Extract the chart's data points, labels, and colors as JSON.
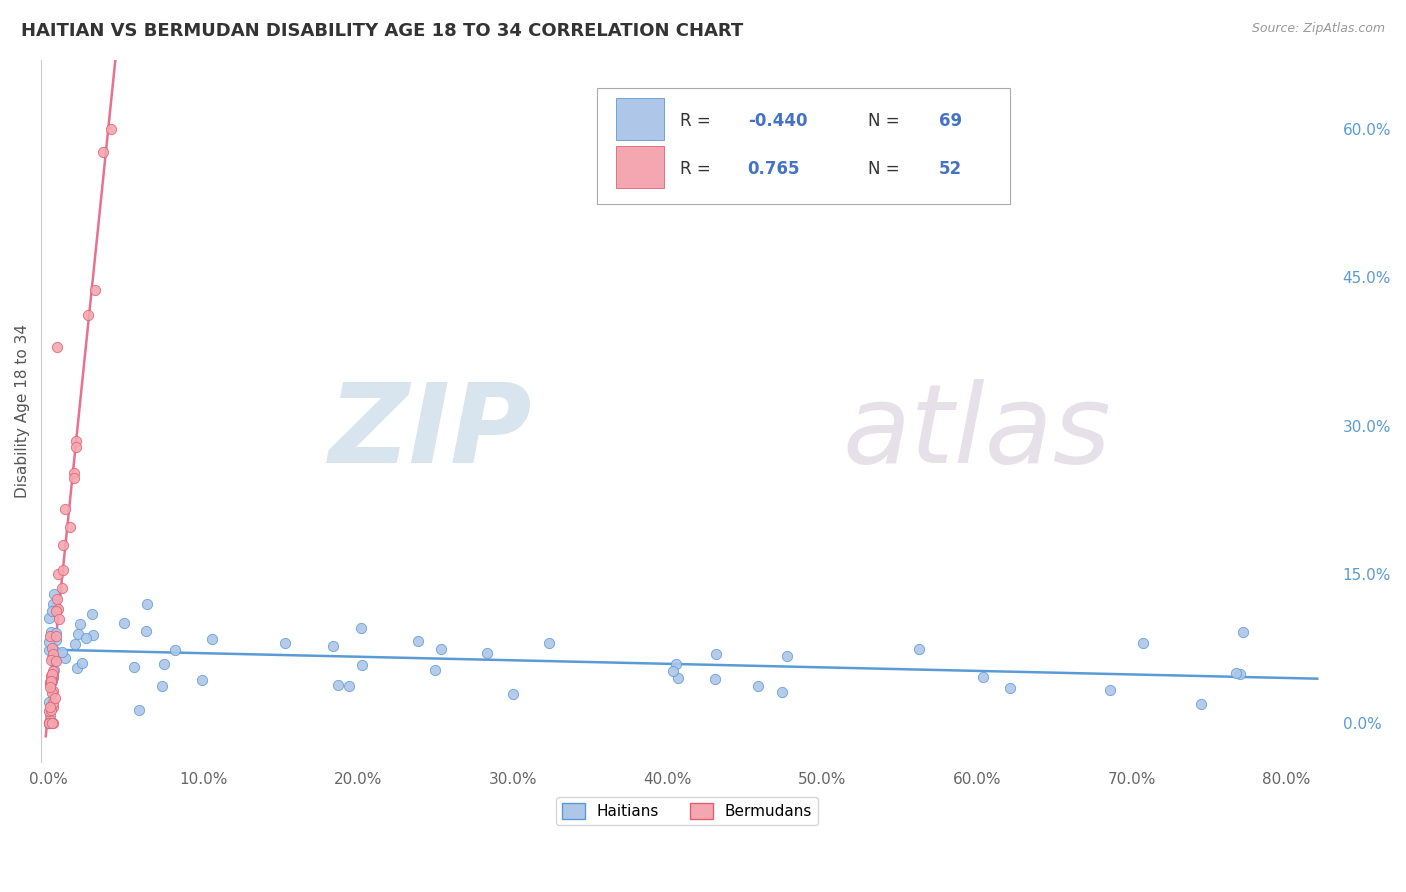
{
  "title": "HAITIAN VS BERMUDAN DISABILITY AGE 18 TO 34 CORRELATION CHART",
  "source_text": "Source: ZipAtlas.com",
  "ylabel": "Disability Age 18 to 34",
  "xlim": [
    -0.005,
    0.83
  ],
  "ylim": [
    -0.04,
    0.67
  ],
  "xticks": [
    0.0,
    0.1,
    0.2,
    0.3,
    0.4,
    0.5,
    0.6,
    0.7,
    0.8
  ],
  "xtick_labels": [
    "0.0%",
    "10.0%",
    "20.0%",
    "30.0%",
    "40.0%",
    "50.0%",
    "60.0%",
    "70.0%",
    "80.0%"
  ],
  "yticks_right": [
    0.0,
    0.15,
    0.3,
    0.45,
    0.6
  ],
  "ytick_labels_right": [
    "0.0%",
    "15.0%",
    "30.0%",
    "45.0%",
    "60.0%"
  ],
  "haitian_color": "#aec6e8",
  "haitian_edge": "#5b9bd5",
  "bermudan_color": "#f4a7b0",
  "bermudan_edge": "#e06070",
  "trend_haitian_color": "#5b9bd5",
  "trend_bermudan_color": "#e87090",
  "R_haitian": -0.44,
  "N_haitian": 69,
  "R_bermudan": 0.765,
  "N_bermudan": 52,
  "watermark_zip": "ZIP",
  "watermark_atlas": "atlas",
  "watermark_color_zip": "#b8cfe0",
  "watermark_color_atlas": "#c8bcd0",
  "background_color": "#ffffff",
  "grid_color": "#bbbbbb",
  "title_color": "#333333",
  "legend_label_haitian": "Haitians",
  "legend_label_bermudan": "Bermudans",
  "corr_box_haitian_r": "-0.440",
  "corr_box_haitian_n": "69",
  "corr_box_bermudan_r": "0.765",
  "corr_box_bermudan_n": "52"
}
